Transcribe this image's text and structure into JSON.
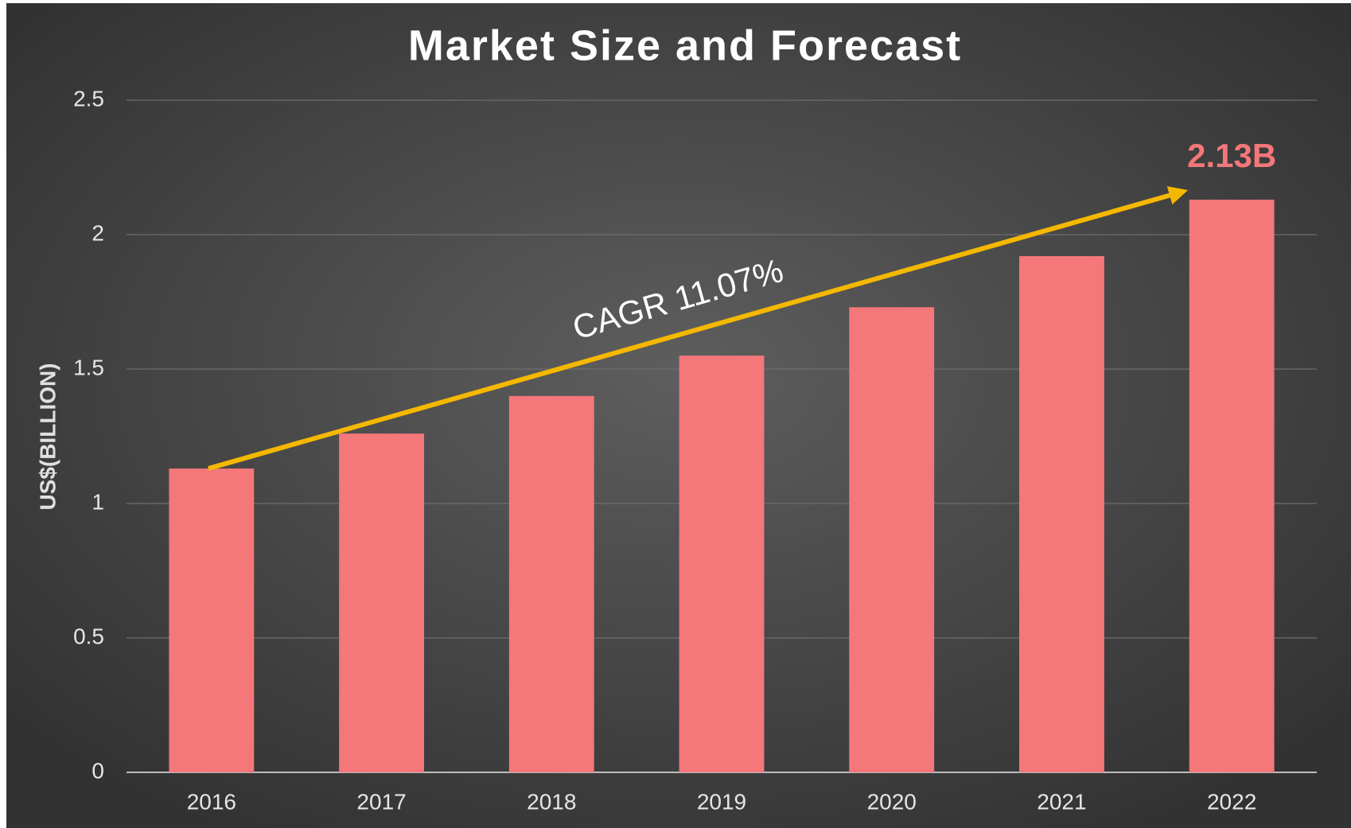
{
  "chart_data": {
    "type": "bar",
    "title": "Market Size and Forecast",
    "y_label": "US$(BILLION)",
    "annotation": "CAGR 11.07%",
    "categories": [
      "2016",
      "2017",
      "2018",
      "2019",
      "2020",
      "2021",
      "2022"
    ],
    "values": [
      1.13,
      1.26,
      1.4,
      1.55,
      1.73,
      1.92,
      2.13
    ],
    "value_labels": [
      null,
      null,
      null,
      null,
      null,
      null,
      "2.13B"
    ],
    "color": "#f4777a",
    "ylim": [
      0,
      2.5
    ],
    "yticks": [
      0,
      0.5,
      1,
      1.5,
      2,
      2.5
    ],
    "grid": true
  }
}
